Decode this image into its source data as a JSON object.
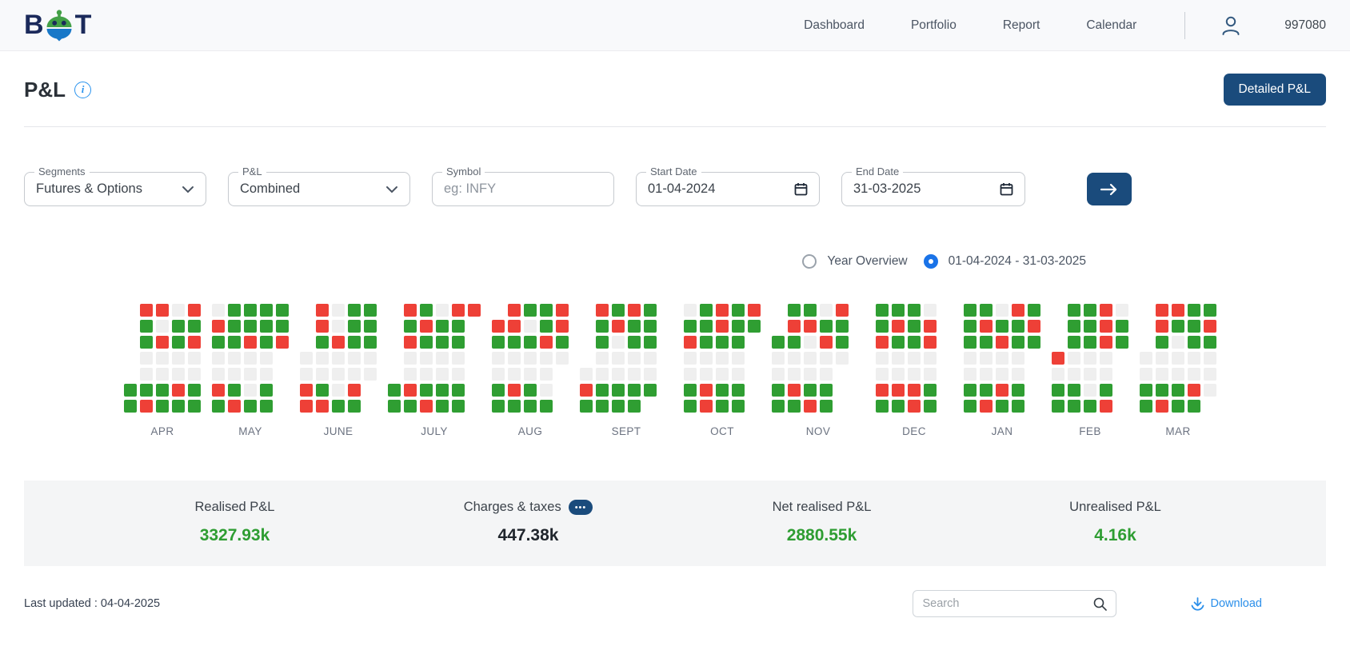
{
  "header": {
    "logo": {
      "left": "B",
      "right": "T"
    },
    "nav_items": [
      {
        "label": "Dashboard"
      },
      {
        "label": "Portfolio"
      },
      {
        "label": "Report"
      },
      {
        "label": "Calendar"
      }
    ],
    "client_id": "997080"
  },
  "page": {
    "title": "P&L",
    "detailed_pnl_button": "Detailed P&L"
  },
  "filters": {
    "segments": {
      "label": "Segments",
      "value": "Futures & Options"
    },
    "pnl": {
      "label": "P&L",
      "value": "Combined"
    },
    "symbol": {
      "label": "Symbol",
      "placeholder": "eg: INFY"
    },
    "start_date": {
      "label": "Start Date",
      "value": "01-04-2024"
    },
    "end_date": {
      "label": "End Date",
      "value": "31-03-2025"
    }
  },
  "view_toggle": {
    "options": [
      {
        "label": "Year Overview",
        "selected": false
      },
      {
        "label": "01-04-2024 - 31-03-2025",
        "selected": true
      }
    ]
  },
  "chart_data": {
    "type": "heatmap",
    "description": "Daily P&L calendar, one block per month, 7 weekday rows x weekly columns",
    "legend": {
      "G": "profit day",
      "R": "loss day",
      "X": "non-trading day",
      ".": "outside month"
    },
    "colors": {
      "G": "#2f9e32",
      "R": "#ee4037",
      "X": "#efefef",
      ".": "transparent"
    },
    "months": [
      {
        "label": "APR",
        "rows": [
          ".RRXR",
          ".GXGG",
          ".GRGR",
          ".XXXX",
          ".XXXX",
          "GGGRG",
          "GRGGG"
        ]
      },
      {
        "label": "MAY",
        "rows": [
          "XGGGG",
          "RGGGG",
          "GGRGR",
          "XXXX.",
          "XXXX.",
          "RGXG.",
          "GRGG."
        ]
      },
      {
        "label": "JUNE",
        "rows": [
          ".RXGG",
          ".RXGG",
          ".GRGG",
          "XXXXX",
          "XXXXX",
          "RGXR.",
          "RRGG."
        ]
      },
      {
        "label": "JULY",
        "rows": [
          ".RGXRR",
          ".GRGG.",
          ".RGGG.",
          ".XXXX.",
          ".XXXX.",
          "GRGGG.",
          "GGRGG."
        ]
      },
      {
        "label": "AUG",
        "rows": [
          ".RGGR",
          "RRXGR",
          "GGGRG",
          "XXXXX",
          "XXXX.",
          "GRGX.",
          "GGGG."
        ]
      },
      {
        "label": "SEPT",
        "rows": [
          ".RGRG.",
          ".GRGG.",
          ".GXGG.",
          ".XXXX.",
          "XXXXX.",
          "RGGGG.",
          "GGGG.."
        ]
      },
      {
        "label": "OCT",
        "rows": [
          "XGRGR",
          "GGRGG",
          "RGGG.",
          "XXXX.",
          "XXXX.",
          "GRGG.",
          "GRGG."
        ]
      },
      {
        "label": "NOV",
        "rows": [
          ".GGXR.",
          ".RRGG.",
          "GGXRG.",
          "XXXXX.",
          "XXXX..",
          "GRGG..",
          "GGRG.."
        ]
      },
      {
        "label": "DEC",
        "rows": [
          "GGGX.",
          "GRGR.",
          "RGGR.",
          "XXXX.",
          "XXXX.",
          "RRRG.",
          "GGRG."
        ]
      },
      {
        "label": "JAN",
        "rows": [
          "GGXRG",
          "GRGGR",
          "GGRGG",
          "XXXX.",
          "XXXX.",
          "GGRG.",
          "GRGG."
        ]
      },
      {
        "label": "FEB",
        "rows": [
          ".GGRX",
          ".GGRG",
          ".GGRG",
          "RXXX.",
          "XXXX.",
          "GGXG.",
          "GGGR."
        ]
      },
      {
        "label": "MAR",
        "rows": [
          ".RRGG",
          ".RGGR",
          ".GXGG",
          "XXXXX",
          "XXXXX",
          "GGGRX",
          "GRGG."
        ]
      }
    ]
  },
  "summary": {
    "stats": [
      {
        "label": "Realised P&L",
        "value": "3327.93k",
        "color": "green",
        "badge": false
      },
      {
        "label": "Charges & taxes",
        "value": "447.38k",
        "color": "dark",
        "badge": true
      },
      {
        "label": "Net realised P&L",
        "value": "2880.55k",
        "color": "green",
        "badge": false
      },
      {
        "label": "Unrealised P&L",
        "value": "4.16k",
        "color": "green",
        "badge": false
      }
    ],
    "badge_glyph": "•••"
  },
  "footer": {
    "last_updated": "Last updated : 04-04-2025",
    "search_placeholder": "Search",
    "download_label": "Download"
  }
}
